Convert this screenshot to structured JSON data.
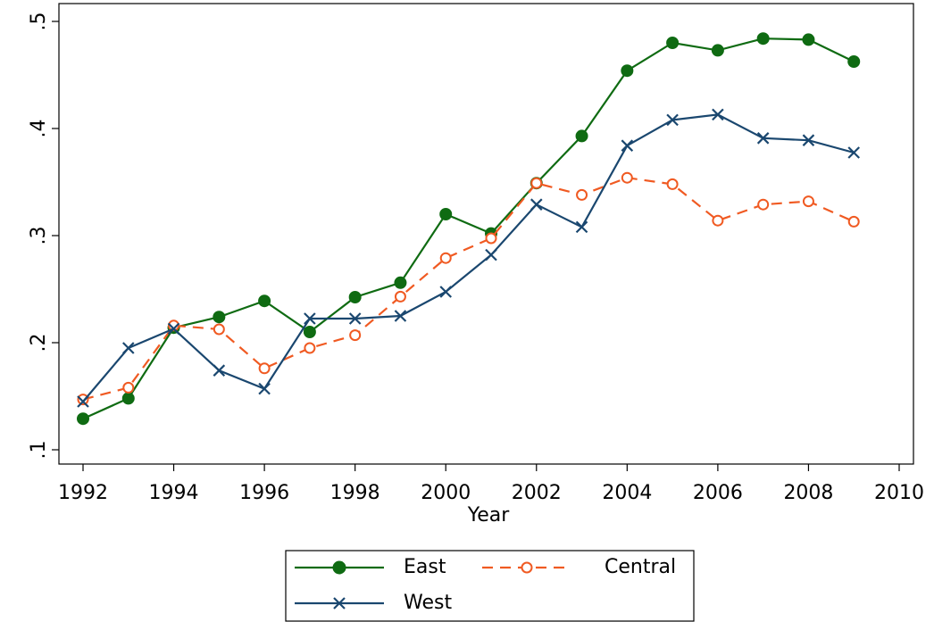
{
  "chart_data": {
    "type": "line",
    "x_label": "Year",
    "x": [
      1992,
      1993,
      1994,
      1995,
      1996,
      1997,
      1998,
      1999,
      2000,
      2001,
      2002,
      2003,
      2004,
      2005,
      2006,
      2007,
      2008,
      2009
    ],
    "series": [
      {
        "name": "East",
        "color": "#0f6b12",
        "marker": "filled-circle",
        "dashed": false,
        "values": [
          0.129,
          0.148,
          0.214,
          0.224,
          0.239,
          0.21,
          0.2425,
          0.256,
          0.32,
          0.302,
          0.349,
          0.393,
          0.454,
          0.48,
          0.473,
          0.484,
          0.483,
          0.4625
        ]
      },
      {
        "name": "Central",
        "color": "#f05a22",
        "marker": "hollow-circle",
        "dashed": true,
        "values": [
          0.147,
          0.158,
          0.216,
          0.2125,
          0.176,
          0.195,
          0.207,
          0.243,
          0.279,
          0.2975,
          0.349,
          0.338,
          0.354,
          0.348,
          0.314,
          0.329,
          0.332,
          0.313
        ]
      },
      {
        "name": "West",
        "color": "#1a476f",
        "marker": "x",
        "dashed": false,
        "values": [
          0.145,
          0.195,
          0.213,
          0.174,
          0.157,
          0.2225,
          0.2225,
          0.225,
          0.2475,
          0.282,
          0.329,
          0.308,
          0.384,
          0.408,
          0.413,
          0.391,
          0.389,
          0.3775
        ]
      }
    ],
    "xlim": [
      1992,
      2010
    ],
    "xticks": [
      1992,
      1994,
      1996,
      1998,
      2000,
      2002,
      2004,
      2006,
      2008,
      2010
    ],
    "ylim": [
      0.1,
      0.5
    ],
    "yticks": [
      {
        "value": 0.1,
        "label": ".1"
      },
      {
        "value": 0.2,
        "label": ".2"
      },
      {
        "value": 0.3,
        "label": ".3"
      },
      {
        "value": 0.4,
        "label": ".4"
      },
      {
        "value": 0.5,
        "label": ".5"
      }
    ],
    "grid": false,
    "legend_position": "bottom"
  }
}
